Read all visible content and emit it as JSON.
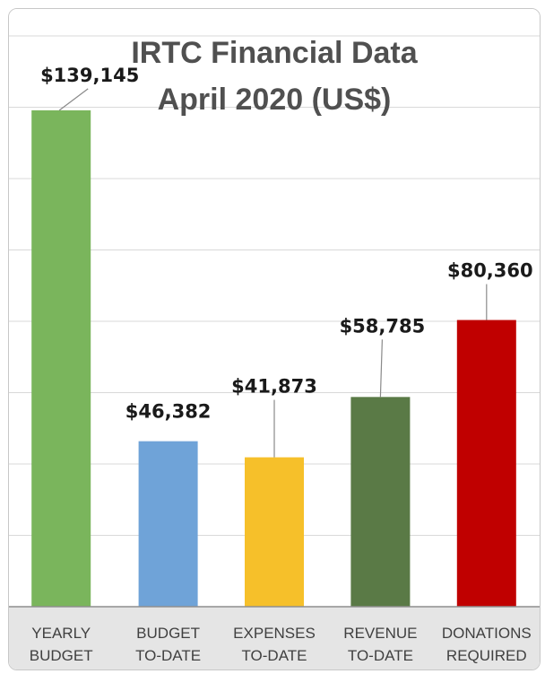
{
  "chart_data": {
    "type": "bar",
    "title": "IRTC Financial Data",
    "subtitle": "April 2020 (US$)",
    "categories": [
      [
        "YEARLY",
        "BUDGET"
      ],
      [
        "BUDGET",
        "TO-DATE"
      ],
      [
        "EXPENSES",
        "TO-DATE"
      ],
      [
        "REVENUE",
        "TO-DATE"
      ],
      [
        "DONATIONS",
        "REQUIRED"
      ]
    ],
    "values": [
      139145,
      46382,
      41873,
      58785,
      80360
    ],
    "data_labels": [
      "$139,145",
      "$46,382",
      "$41,873",
      "$58,785",
      "$80,360"
    ],
    "colors": [
      "#7ab55c",
      "#6fa3d8",
      "#f6c02a",
      "#5a7a46",
      "#c00000"
    ],
    "ylim": [
      0,
      160000
    ],
    "grid": true,
    "legend": "none"
  }
}
